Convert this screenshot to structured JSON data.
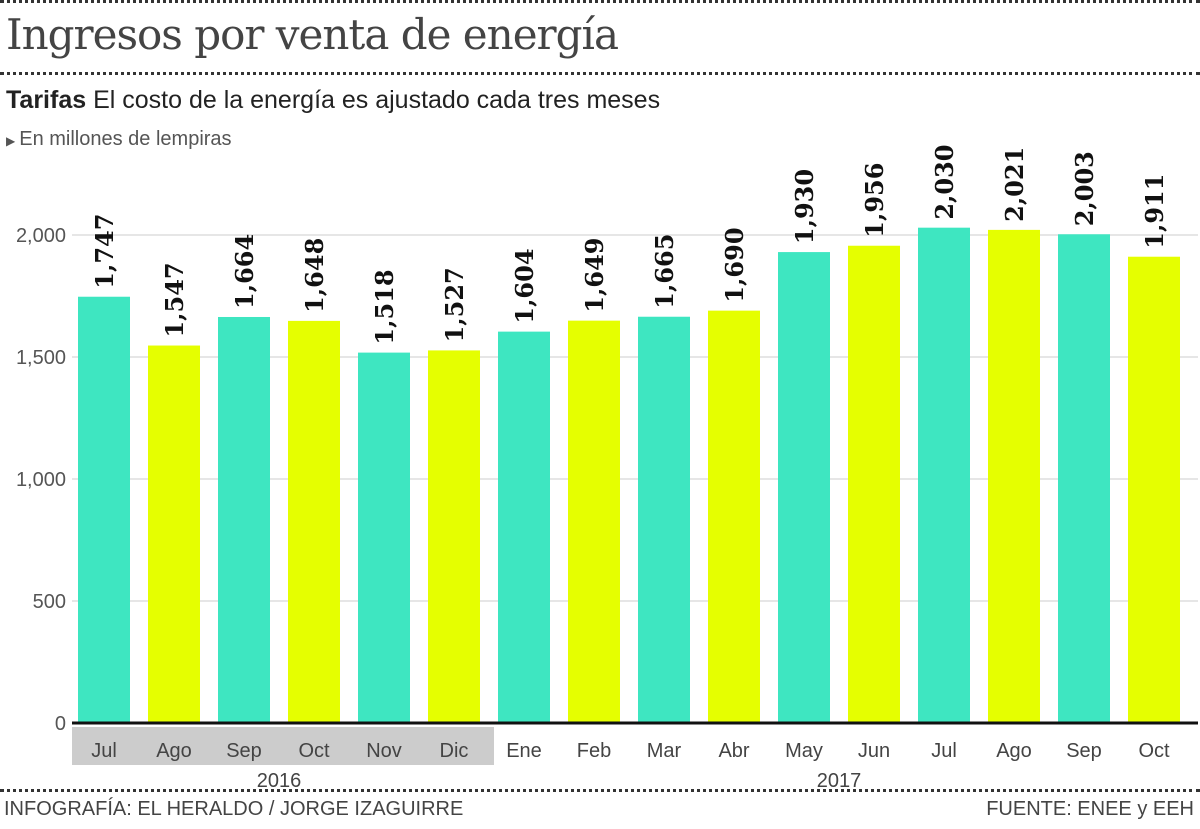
{
  "header": {
    "title": "Ingresos por venta de energía",
    "subtitle_bold": "Tarifas",
    "subtitle": "El costo de la energía es ajustado cada tres meses",
    "units": "En millones de lempiras"
  },
  "footer": {
    "credit": "INFOGRAFÍA: EL HERALDO / JORGE IZAGUIRRE",
    "source": "FUENTE: ENEE y EEH"
  },
  "colors": {
    "teal": "#3ee6c1",
    "yellow": "#e5ff00",
    "year_band": "#cccccc"
  },
  "chart_data": {
    "type": "bar",
    "title": "Ingresos por venta de energía",
    "ylabel": "En millones de lempiras",
    "ylim": [
      0,
      2000
    ],
    "yticks": [
      0,
      500,
      1000,
      1500,
      2000
    ],
    "ytick_labels": [
      "0",
      "500",
      "1,000",
      "1,500",
      "2,000"
    ],
    "grid": true,
    "categories": [
      "Jul",
      "Ago",
      "Sep",
      "Oct",
      "Nov",
      "Dic",
      "Ene",
      "Feb",
      "Mar",
      "Abr",
      "May",
      "Jun",
      "Jul",
      "Ago",
      "Sep",
      "Oct"
    ],
    "values": [
      1747,
      1547,
      1664,
      1648,
      1518,
      1527,
      1604,
      1649,
      1665,
      1690,
      1930,
      1956,
      2030,
      2021,
      2003,
      1911
    ],
    "value_labels": [
      "1,747",
      "1,547",
      "1,664",
      "1,648",
      "1,518",
      "1,527",
      "1,604",
      "1,649",
      "1,665",
      "1,690",
      "1,930",
      "1,956",
      "2,030",
      "2,021",
      "2,003",
      "1,911"
    ],
    "years": [
      {
        "label": "2016",
        "start": 0,
        "end": 5
      },
      {
        "label": "2017",
        "start": 6,
        "end": 15
      }
    ]
  }
}
